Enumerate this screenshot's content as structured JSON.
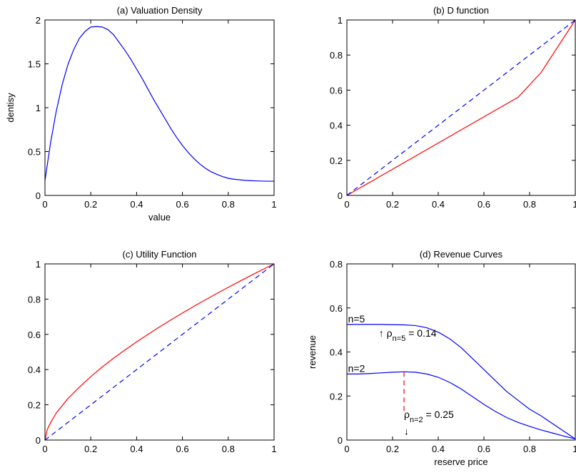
{
  "chart_data": [
    {
      "type": "line",
      "title": "(a) Valuation Density",
      "xlabel": "value",
      "ylabel": "dentisy",
      "xlim": [
        0,
        1
      ],
      "ylim": [
        0,
        2
      ],
      "xticks": [
        0,
        0.2,
        0.4,
        0.6,
        0.8,
        1
      ],
      "xtick_labels": [
        "0",
        "0.2",
        "0.4",
        "0.6",
        "0.8",
        "1"
      ],
      "yticks": [
        0,
        0.5,
        1,
        1.5,
        2
      ],
      "ytick_labels": [
        "0",
        "0.5",
        "1",
        "1.5",
        "2"
      ],
      "grid": false,
      "series": [
        {
          "color": "#0000ff",
          "style": "solid",
          "x": [
            0,
            0.025,
            0.05,
            0.075,
            0.1,
            0.125,
            0.15,
            0.175,
            0.2,
            0.225,
            0.25,
            0.275,
            0.3,
            0.325,
            0.35,
            0.375,
            0.4,
            0.425,
            0.45,
            0.475,
            0.5,
            0.525,
            0.55,
            0.575,
            0.6,
            0.625,
            0.65,
            0.675,
            0.7,
            0.725,
            0.75,
            0.775,
            0.8,
            0.825,
            0.85,
            0.875,
            0.9,
            0.925,
            0.95,
            0.975,
            1
          ],
          "y": [
            0.17,
            0.61,
            0.97,
            1.26,
            1.49,
            1.66,
            1.79,
            1.87,
            1.92,
            1.925,
            1.92,
            1.89,
            1.83,
            1.74,
            1.65,
            1.55,
            1.44,
            1.33,
            1.21,
            1.09,
            0.98,
            0.87,
            0.76,
            0.66,
            0.57,
            0.49,
            0.42,
            0.36,
            0.31,
            0.27,
            0.24,
            0.215,
            0.195,
            0.185,
            0.178,
            0.172,
            0.168,
            0.165,
            0.163,
            0.162,
            0.162
          ]
        }
      ]
    },
    {
      "type": "line",
      "title": "(b) D function",
      "xlabel": "",
      "ylabel": "",
      "xlim": [
        0,
        1
      ],
      "ylim": [
        0,
        1
      ],
      "xticks": [
        0,
        0.2,
        0.4,
        0.6,
        0.8,
        1
      ],
      "xtick_labels": [
        "0",
        "0.2",
        "0.4",
        "0.6",
        "0.8",
        "1"
      ],
      "yticks": [
        0,
        0.2,
        0.4,
        0.6,
        0.8,
        1
      ],
      "ytick_labels": [
        "0",
        "0.2",
        "0.4",
        "0.6",
        "0.8",
        "1"
      ],
      "grid": false,
      "series": [
        {
          "color": "#ff0000",
          "style": "solid",
          "x": [
            0,
            0.75,
            0.85,
            1
          ],
          "y": [
            0,
            0.56,
            0.7,
            1
          ]
        },
        {
          "color": "#0000ff",
          "style": "dashed",
          "x": [
            0,
            1
          ],
          "y": [
            0,
            1
          ]
        }
      ]
    },
    {
      "type": "line",
      "title": "(c) Utility Function",
      "xlabel": "",
      "ylabel": "",
      "xlim": [
        0,
        1
      ],
      "ylim": [
        0,
        1
      ],
      "xticks": [
        0,
        0.2,
        0.4,
        0.6,
        0.8,
        1
      ],
      "xtick_labels": [
        "0",
        "0.2",
        "0.4",
        "0.6",
        "0.8",
        "1"
      ],
      "yticks": [
        0,
        0.2,
        0.4,
        0.6,
        0.8,
        1
      ],
      "ytick_labels": [
        "0",
        "0.2",
        "0.4",
        "0.6",
        "0.8",
        "1"
      ],
      "grid": false,
      "series": [
        {
          "color": "#ff0000",
          "style": "solid",
          "x": [
            0,
            0.01,
            0.025,
            0.05,
            0.1,
            0.15,
            0.2,
            0.25,
            0.3,
            0.35,
            0.4,
            0.45,
            0.5,
            0.55,
            0.6,
            0.65,
            0.7,
            0.75,
            0.8,
            0.85,
            0.9,
            0.95,
            1
          ],
          "y": [
            0,
            0.06,
            0.1,
            0.155,
            0.235,
            0.3,
            0.36,
            0.415,
            0.465,
            0.512,
            0.557,
            0.6,
            0.642,
            0.682,
            0.721,
            0.759,
            0.796,
            0.832,
            0.867,
            0.901,
            0.935,
            0.968,
            1
          ]
        },
        {
          "color": "#0000ff",
          "style": "dashed",
          "x": [
            0,
            1
          ],
          "y": [
            0,
            1
          ]
        }
      ]
    },
    {
      "type": "line",
      "title": "(d) Revenue Curves",
      "xlabel": "reserve price",
      "ylabel": "revenue",
      "xlim": [
        0,
        1
      ],
      "ylim": [
        0,
        0.8
      ],
      "xticks": [
        0,
        0.2,
        0.4,
        0.6,
        0.8,
        1
      ],
      "xtick_labels": [
        "0",
        "0.2",
        "0.4",
        "0.6",
        "0.8",
        "1"
      ],
      "yticks": [
        0,
        0.2,
        0.4,
        0.6,
        0.8
      ],
      "ytick_labels": [
        "0",
        "0.2",
        "0.4",
        "0.6",
        "0.8"
      ],
      "grid": false,
      "series": [
        {
          "color": "#0000ff",
          "style": "solid",
          "x": [
            0,
            0.05,
            0.1,
            0.15,
            0.2,
            0.25,
            0.3,
            0.35,
            0.4,
            0.45,
            0.5,
            0.55,
            0.6,
            0.65,
            0.7,
            0.75,
            0.8,
            0.85,
            0.9,
            0.95,
            1
          ],
          "y": [
            0.525,
            0.525,
            0.525,
            0.525,
            0.524,
            0.523,
            0.52,
            0.51,
            0.49,
            0.46,
            0.42,
            0.37,
            0.32,
            0.27,
            0.22,
            0.18,
            0.14,
            0.11,
            0.075,
            0.04,
            0.005
          ]
        },
        {
          "color": "#0000ff",
          "style": "solid",
          "x": [
            0,
            0.05,
            0.1,
            0.15,
            0.2,
            0.25,
            0.3,
            0.35,
            0.4,
            0.45,
            0.5,
            0.55,
            0.6,
            0.65,
            0.7,
            0.75,
            0.8,
            0.85,
            0.9,
            0.95,
            1
          ],
          "y": [
            0.3,
            0.3,
            0.302,
            0.305,
            0.308,
            0.31,
            0.308,
            0.3,
            0.285,
            0.262,
            0.232,
            0.197,
            0.162,
            0.13,
            0.102,
            0.08,
            0.062,
            0.046,
            0.032,
            0.018,
            0.005
          ]
        }
      ],
      "annotations": [
        {
          "type": "text",
          "text": "n=5",
          "x": 0.005,
          "y": 0.535
        },
        {
          "type": "text",
          "text": "n=2",
          "x": 0.005,
          "y": 0.31
        },
        {
          "type": "text",
          "text": "↑ ρ",
          "subscript": "n=5",
          "suffix": " = 0.14",
          "x": 0.14,
          "y": 0.47
        },
        {
          "type": "text",
          "text": "ρ",
          "subscript": "n=2",
          "suffix": " = 0.25",
          "x": 0.25,
          "y": 0.1
        },
        {
          "type": "text",
          "text": "↓",
          "x": 0.25,
          "y": 0.025
        },
        {
          "type": "vline",
          "x": 0.25,
          "y0": 0.31,
          "y1": 0.12,
          "color": "#ff0000",
          "style": "dashed"
        }
      ]
    }
  ]
}
